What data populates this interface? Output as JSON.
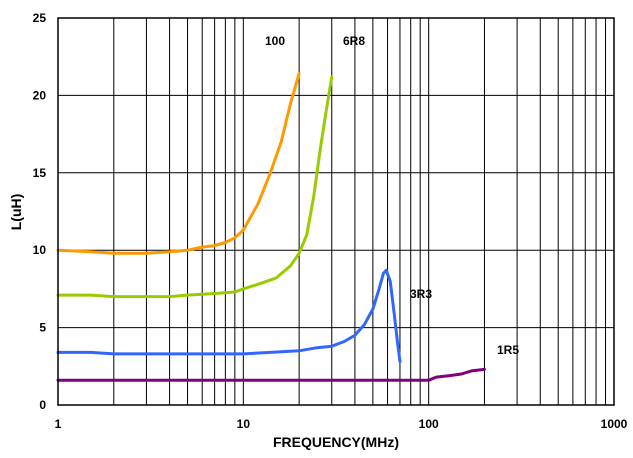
{
  "chart_data": {
    "type": "line",
    "xlabel": "FREQUENCY(MHz)",
    "ylabel": "L(uH)",
    "xscale": "log",
    "xlim": [
      1,
      1000
    ],
    "ylim": [
      0,
      25
    ],
    "x_ticks": [
      "1",
      "10",
      "100",
      "1000"
    ],
    "y_ticks": [
      "0",
      "5",
      "10",
      "15",
      "20",
      "25"
    ],
    "grid": true,
    "series": [
      {
        "name": "100",
        "color": "#ff9900",
        "points": [
          [
            1,
            10.0
          ],
          [
            1.5,
            9.9
          ],
          [
            2,
            9.8
          ],
          [
            3,
            9.8
          ],
          [
            4,
            9.9
          ],
          [
            5,
            10.0
          ],
          [
            6,
            10.2
          ],
          [
            7,
            10.3
          ],
          [
            8,
            10.5
          ],
          [
            9,
            10.8
          ],
          [
            10,
            11.3
          ],
          [
            12,
            13.0
          ],
          [
            14,
            15.0
          ],
          [
            16,
            17.0
          ],
          [
            18,
            19.5
          ],
          [
            20,
            21.4
          ]
        ]
      },
      {
        "name": "6R8",
        "color": "#99cc00",
        "points": [
          [
            1,
            7.1
          ],
          [
            1.5,
            7.1
          ],
          [
            2,
            7.0
          ],
          [
            3,
            7.0
          ],
          [
            4,
            7.0
          ],
          [
            5,
            7.1
          ],
          [
            7,
            7.2
          ],
          [
            9,
            7.3
          ],
          [
            10,
            7.5
          ],
          [
            12,
            7.8
          ],
          [
            15,
            8.2
          ],
          [
            18,
            9.0
          ],
          [
            20,
            9.8
          ],
          [
            22,
            11.0
          ],
          [
            24,
            13.5
          ],
          [
            26,
            16.5
          ],
          [
            28,
            19.0
          ],
          [
            30,
            21.2
          ]
        ]
      },
      {
        "name": "3R3",
        "color": "#3366ff",
        "points": [
          [
            1,
            3.4
          ],
          [
            1.5,
            3.4
          ],
          [
            2,
            3.3
          ],
          [
            5,
            3.3
          ],
          [
            10,
            3.3
          ],
          [
            14,
            3.4
          ],
          [
            20,
            3.5
          ],
          [
            25,
            3.7
          ],
          [
            30,
            3.8
          ],
          [
            35,
            4.1
          ],
          [
            40,
            4.5
          ],
          [
            45,
            5.2
          ],
          [
            50,
            6.2
          ],
          [
            54,
            7.5
          ],
          [
            57,
            8.5
          ],
          [
            59,
            8.7
          ],
          [
            62,
            8.0
          ],
          [
            65,
            6.0
          ],
          [
            68,
            4.0
          ],
          [
            70,
            2.8
          ]
        ]
      },
      {
        "name": "1R5",
        "color": "#800080",
        "points": [
          [
            1,
            1.6
          ],
          [
            10,
            1.6
          ],
          [
            50,
            1.6
          ],
          [
            100,
            1.6
          ],
          [
            110,
            1.8
          ],
          [
            130,
            1.9
          ],
          [
            150,
            2.0
          ],
          [
            170,
            2.2
          ],
          [
            200,
            2.3
          ]
        ]
      }
    ]
  }
}
